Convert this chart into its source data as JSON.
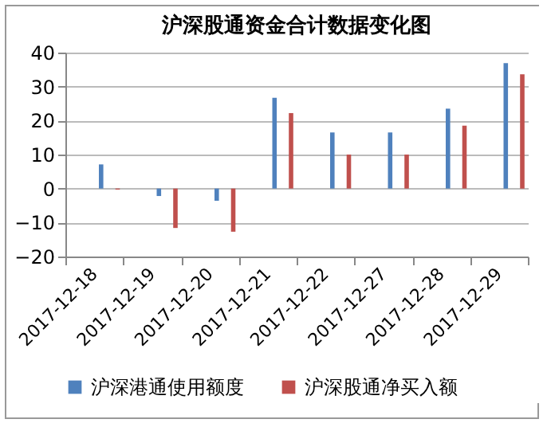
{
  "chart_data": {
    "type": "bar",
    "title": "沪深股通资金合计数据变化图",
    "categories": [
      "2017-12-18",
      "2017-12-19",
      "2017-12-20",
      "2017-12-21",
      "2017-12-22",
      "2017-12-27",
      "2017-12-28",
      "2017-12-29"
    ],
    "series": [
      {
        "name": "沪深港通使用额度",
        "color": "#4f81bd",
        "values": [
          7.1,
          -2.2,
          -3.6,
          26.7,
          16.5,
          16.5,
          23.5,
          36.9
        ]
      },
      {
        "name": "沪深股通净买入额",
        "color": "#c0504d",
        "values": [
          -0.3,
          -11.6,
          -12.7,
          22.2,
          10,
          10,
          18.5,
          33.6
        ]
      }
    ],
    "ylim": [
      -20,
      40
    ],
    "yticks": [
      -20,
      -10,
      0,
      10,
      20,
      30,
      40
    ],
    "grid": "y",
    "legend": "bottom"
  }
}
